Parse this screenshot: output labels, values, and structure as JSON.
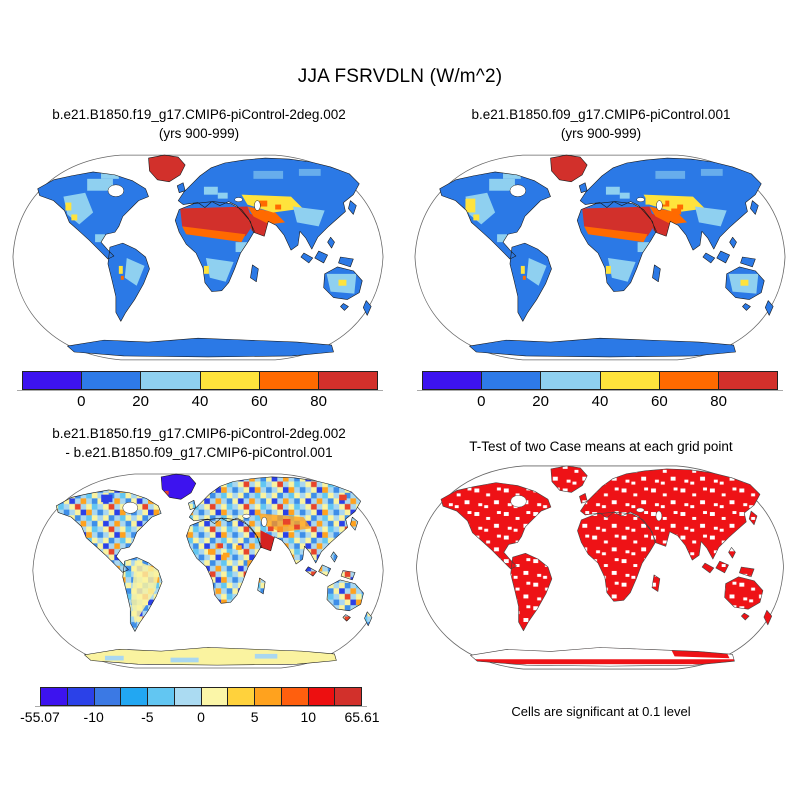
{
  "figure": {
    "title": "JJA FSRVDLN (W/m^2)",
    "panels": [
      {
        "id": "case1",
        "line1": "b.e21.B1850.f19_g17.CMIP6-piControl-2deg.002",
        "line2": "(yrs 900-999)"
      },
      {
        "id": "case2",
        "line1": "b.e21.B1850.f09_g17.CMIP6-piControl.001",
        "line2": "(yrs 900-999)"
      },
      {
        "id": "diff",
        "line1": "b.e21.B1850.f19_g17.CMIP6-piControl-2deg.002",
        "line2": "- b.e21.B1850.f09_g17.CMIP6-piControl.001"
      },
      {
        "id": "ttest",
        "line1": "T-Test of two Case means at each grid point",
        "caption": "Cells are significant at 0.1 level"
      }
    ]
  },
  "colorbars": {
    "mean": {
      "colors": [
        "#3D13EF",
        "#2E7AE8",
        "#8FD0F0",
        "#FFE33C",
        "#FF6A00",
        "#D2302B"
      ],
      "labels": [
        "0",
        "20",
        "40",
        "60",
        "80"
      ],
      "positions": [
        0.1667,
        0.3333,
        0.5,
        0.6667,
        0.8333
      ]
    },
    "diff": {
      "colors": [
        "#3D13EF",
        "#2B41E8",
        "#3B79E4",
        "#22A7F2",
        "#62C6F2",
        "#ABDBF2",
        "#FBF6A8",
        "#FFD23C",
        "#FFA21E",
        "#FF5F0E",
        "#ED0F10",
        "#D2302B"
      ],
      "labels": [
        "-55.07",
        "-10",
        "-5",
        "0",
        "5",
        "10",
        "65.61"
      ],
      "positions": [
        0,
        0.1667,
        0.3333,
        0.5,
        0.6667,
        0.8333,
        1
      ]
    }
  },
  "palette": {
    "ocean": "#FFFFFF",
    "coast": "#1a1a1a",
    "coast_gray": "#444444",
    "outline": "#666666",
    "land_mean": "#2B79E6",
    "light_blue": "#8FD0F0",
    "yellow": "#FFE33C",
    "orange": "#FF6A00",
    "red": "#D2302B",
    "violet": "#3D13EF",
    "diff_base": "#A9D7F0",
    "pale_yellow": "#FAF3A0",
    "mid_blue": "#3E8EE8",
    "cyan": "#62C6F2",
    "deep_blue": "#2B41E8",
    "diff_orange": "#FFA21E",
    "diff_red": "#E8442A",
    "strong_red": "#D42220",
    "ttest_red": "#EE1216"
  },
  "chart_data": [
    {
      "type": "heatmap",
      "projection": "robinson world map",
      "title": "b.e21.B1850.f19_g17.CMIP6-piControl-2deg.002 (yrs 900-999)",
      "variable": "JJA FSRVDLN",
      "units": "W/m^2",
      "colorbar_levels": [
        0,
        20,
        40,
        60,
        80
      ],
      "palette": [
        "#3D13EF",
        "#2E7AE8",
        "#8FD0F0",
        "#FFE33C",
        "#FF6A00",
        "#D2302B"
      ],
      "regional_values": {
        "most_land": "0-20",
        "western_north_america": "20-40 with spots 40-60",
        "central_asia": "40-60 with spots 60-80",
        "middle_east": "60-80",
        "sahara_and_arabia": ">80",
        "greenland": ">80",
        "southern_africa": "20-40",
        "australia": "20-40 with spots 40-60",
        "andes": "40-80 spots",
        "antarctica": "0-20",
        "oceans": "no data (white)"
      }
    },
    {
      "type": "heatmap",
      "projection": "robinson world map",
      "title": "b.e21.B1850.f09_g17.CMIP6-piControl.001 (yrs 900-999)",
      "variable": "JJA FSRVDLN",
      "units": "W/m^2",
      "colorbar_levels": [
        0,
        20,
        40,
        60,
        80
      ],
      "palette": [
        "#3D13EF",
        "#2E7AE8",
        "#8FD0F0",
        "#FFE33C",
        "#FF6A00",
        "#D2302B"
      ],
      "regional_values": {
        "most_land": "0-20",
        "western_north_america": "20-40 with spots 40-60",
        "central_asia": "40-60",
        "middle_east": "60-80",
        "sahara_and_arabia": ">80",
        "greenland": ">80",
        "southern_africa": "20-40",
        "australia": "20-40 with spots 40-60",
        "antarctica": "0-20",
        "oceans": "no data (white)"
      }
    },
    {
      "type": "heatmap",
      "projection": "robinson world map",
      "title": "b.e21.B1850.f19_g17.CMIP6-piControl-2deg.002 - b.e21.B1850.f09_g17.CMIP6-piControl.001",
      "variable": "JJA FSRVDLN difference",
      "units": "W/m^2",
      "range": [
        -55.07,
        65.61
      ],
      "colorbar_levels": [
        -55.07,
        -10,
        -5,
        0,
        5,
        10,
        65.61
      ],
      "palette": [
        "#3D13EF",
        "#2B41E8",
        "#3B79E4",
        "#22A7F2",
        "#62C6F2",
        "#ABDBF2",
        "#FBF6A8",
        "#FFD23C",
        "#FFA21E",
        "#FF5F0E",
        "#ED0F10",
        "#D2302B"
      ],
      "regional_values": {
        "most_land": "noisy -5 to +5 (light blue / pale yellow)",
        "greenland": "-55 to -10 (deep violet-blue)",
        "middle_east_central_asia": "+5 to +65 (orange/red patches)",
        "arabia": ">10 (dark red)",
        "antarctica": "0 to 5 (pale yellow)",
        "oceans": "no data (white)"
      }
    },
    {
      "type": "heatmap",
      "projection": "robinson world map",
      "title": "T-Test of two Case means at each grid point",
      "values": "red = significant at 0.1 level; scattered white cells = not significant; oceans no data",
      "caption": "Cells are significant at 0.1 level"
    }
  ]
}
